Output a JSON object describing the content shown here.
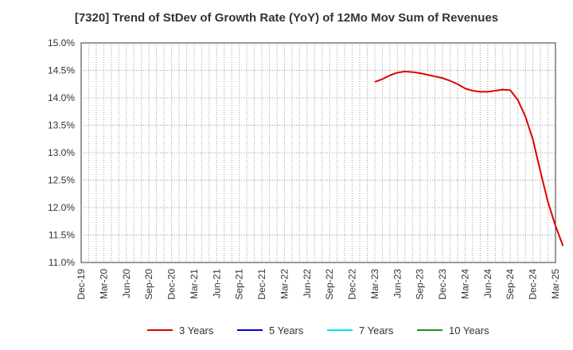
{
  "chart_data": {
    "type": "line",
    "title": "[7320]  Trend of StDev of Growth Rate (YoY) of 12Mo Mov Sum of Revenues",
    "xlabel": "",
    "ylabel": "",
    "ylim": [
      11.0,
      15.0
    ],
    "y_ticks": [
      11.0,
      11.5,
      12.0,
      12.5,
      13.0,
      13.5,
      14.0,
      14.5,
      15.0
    ],
    "y_tick_labels": [
      "11.0%",
      "11.5%",
      "12.0%",
      "12.5%",
      "13.0%",
      "13.5%",
      "14.0%",
      "14.5%",
      "15.0%"
    ],
    "x_tick_labels": [
      "Dec-19",
      "Mar-20",
      "Jun-20",
      "Sep-20",
      "Dec-20",
      "Mar-21",
      "Jun-21",
      "Sep-21",
      "Dec-21",
      "Mar-22",
      "Jun-22",
      "Sep-22",
      "Dec-22",
      "Mar-23",
      "Jun-23",
      "Sep-23",
      "Dec-23",
      "Mar-24",
      "Jun-24",
      "Sep-24",
      "Dec-24",
      "Mar-25"
    ],
    "months_total": 63,
    "grid": true,
    "legend_position": "bottom",
    "series": [
      {
        "name": "3 Years",
        "color": "#dd0000",
        "start_index": 39,
        "values": [
          14.29,
          14.34,
          14.41,
          14.46,
          14.48,
          14.47,
          14.45,
          14.42,
          14.39,
          14.36,
          14.31,
          14.25,
          14.17,
          14.13,
          14.11,
          14.11,
          14.13,
          14.15,
          14.14,
          13.96,
          13.66,
          13.24,
          12.66,
          12.1,
          11.67,
          11.3
        ]
      },
      {
        "name": "5 Years",
        "color": "#0000cc",
        "start_index": 0,
        "values": []
      },
      {
        "name": "7 Years",
        "color": "#00e5ee",
        "start_index": 0,
        "values": []
      },
      {
        "name": "10 Years",
        "color": "#228b22",
        "start_index": 0,
        "values": []
      }
    ]
  }
}
